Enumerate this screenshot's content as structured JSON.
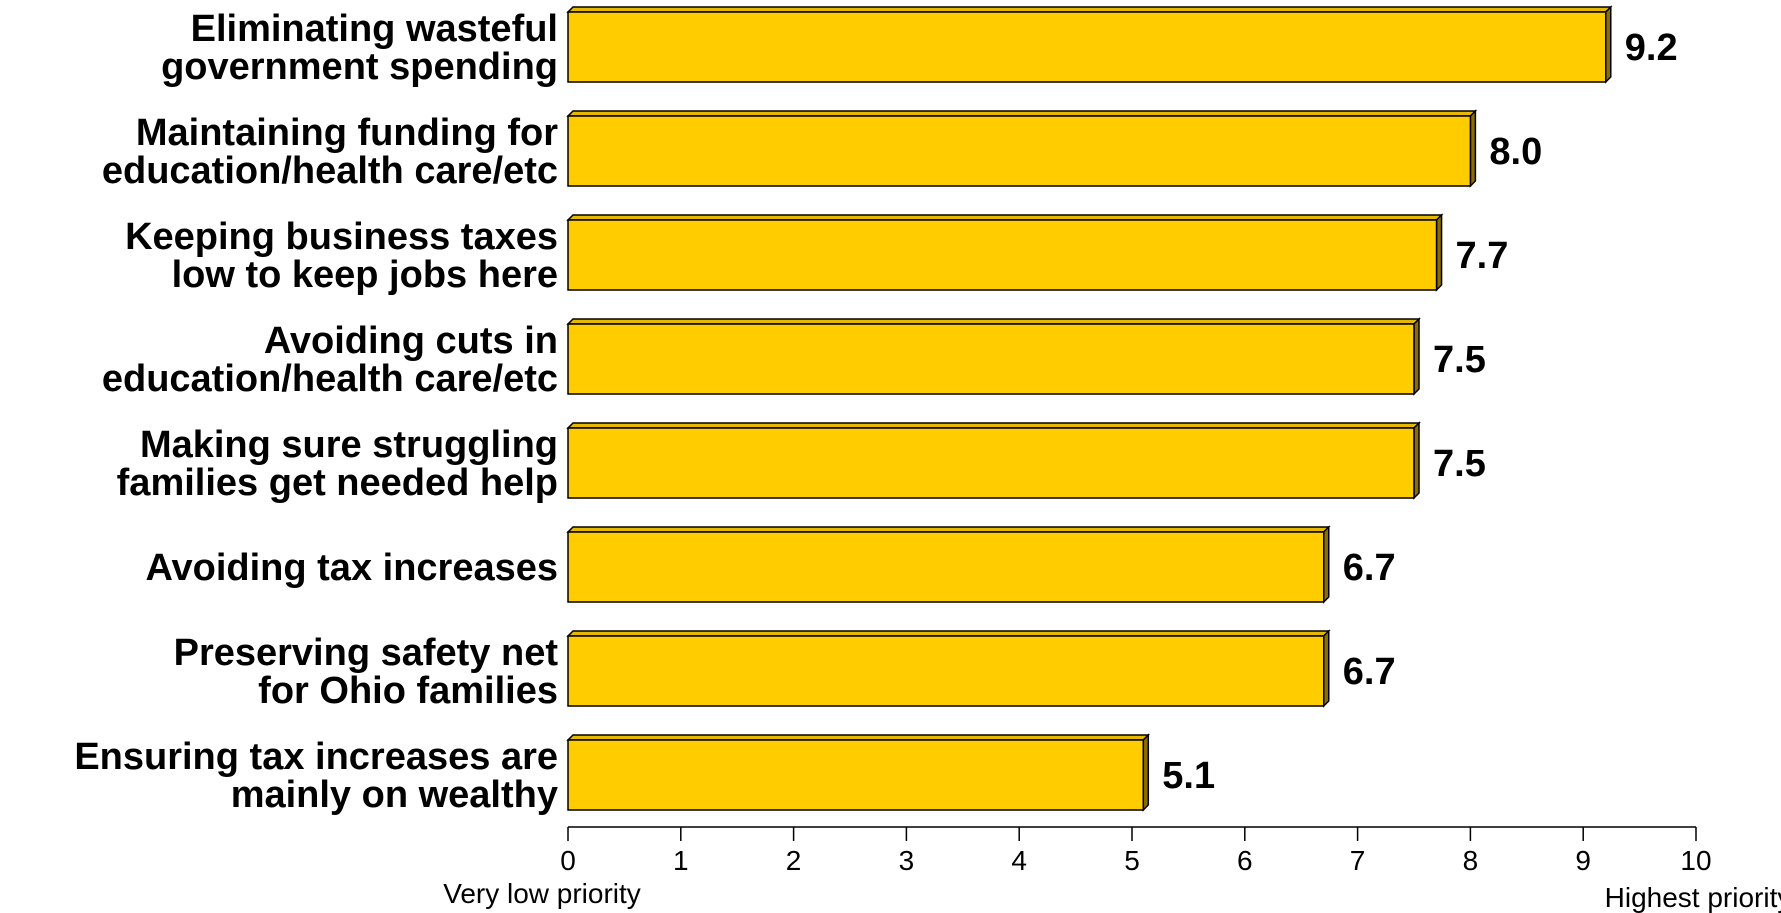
{
  "chart_data": {
    "type": "bar",
    "orientation": "horizontal",
    "categories": [
      [
        "Eliminating wasteful",
        "government spending"
      ],
      [
        "Maintaining funding for",
        "education/health care/etc"
      ],
      [
        "Keeping business taxes",
        "low to keep jobs here"
      ],
      [
        "Avoiding cuts in",
        "education/health care/etc"
      ],
      [
        "Making sure struggling",
        "families get needed help"
      ],
      [
        "Avoiding tax increases"
      ],
      [
        "Preserving safety net",
        "for Ohio families"
      ],
      [
        "Ensuring tax increases are",
        "mainly on wealthy"
      ]
    ],
    "values": [
      9.2,
      8.0,
      7.7,
      7.5,
      7.5,
      6.7,
      6.7,
      5.1
    ],
    "value_labels": [
      "9.2",
      "8.0",
      "7.7",
      "7.5",
      "7.5",
      "6.7",
      "6.7",
      "5.1"
    ],
    "xlim": [
      0,
      10
    ],
    "xticks": [
      "0",
      "1",
      "2",
      "3",
      "4",
      "5",
      "6",
      "7",
      "8",
      "9",
      "10"
    ],
    "axis_end_labels": {
      "low": "Very low priority",
      "high": "Highest priority"
    },
    "title": "",
    "xlabel": "",
    "ylabel": "",
    "grid": false,
    "legend": "none",
    "colors": {
      "bar_face": "#FFCC00",
      "bar_top": "#E6B800",
      "bar_side": "#8C6E00",
      "outline": "#000000"
    }
  }
}
